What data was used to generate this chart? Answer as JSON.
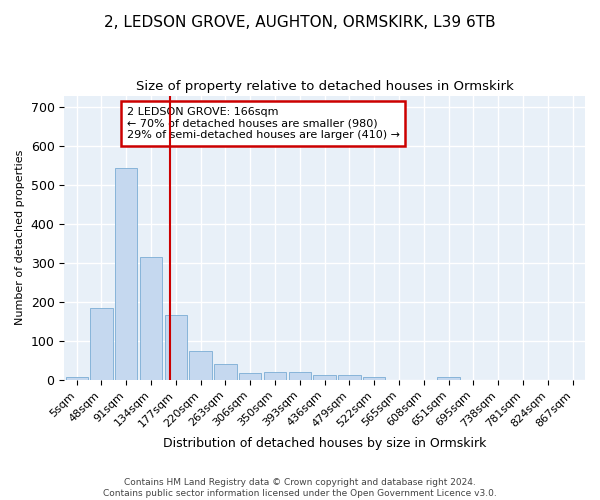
{
  "title": "2, LEDSON GROVE, AUGHTON, ORMSKIRK, L39 6TB",
  "subtitle": "Size of property relative to detached houses in Ormskirk",
  "xlabel": "Distribution of detached houses by size in Ormskirk",
  "ylabel": "Number of detached properties",
  "footer_line1": "Contains HM Land Registry data © Crown copyright and database right 2024.",
  "footer_line2": "Contains public sector information licensed under the Open Government Licence v3.0.",
  "annotation_line1": "2 LEDSON GROVE: 166sqm",
  "annotation_line2": "← 70% of detached houses are smaller (980)",
  "annotation_line3": "29% of semi-detached houses are larger (410) →",
  "bar_labels": [
    "5sqm",
    "48sqm",
    "91sqm",
    "134sqm",
    "177sqm",
    "220sqm",
    "263sqm",
    "306sqm",
    "350sqm",
    "393sqm",
    "436sqm",
    "479sqm",
    "522sqm",
    "565sqm",
    "608sqm",
    "651sqm",
    "695sqm",
    "738sqm",
    "781sqm",
    "824sqm",
    "867sqm"
  ],
  "bar_values": [
    8,
    185,
    545,
    315,
    168,
    75,
    42,
    18,
    20,
    20,
    12,
    12,
    8,
    0,
    0,
    8,
    0,
    0,
    0,
    0,
    0
  ],
  "bar_color": "#c5d8ef",
  "bar_edge_color": "#7aadd4",
  "ylim": [
    0,
    730
  ],
  "yticks": [
    0,
    100,
    200,
    300,
    400,
    500,
    600,
    700
  ],
  "fig_bg_color": "#ffffff",
  "plot_bg_color": "#e8f0f8",
  "annotation_box_color": "#ffffff",
  "annotation_box_edge": "#cc0000",
  "red_line_color": "#cc0000",
  "title_fontsize": 11,
  "subtitle_fontsize": 9.5,
  "ylabel_fontsize": 8,
  "xlabel_fontsize": 9,
  "tick_fontsize": 8,
  "footer_fontsize": 6.5
}
